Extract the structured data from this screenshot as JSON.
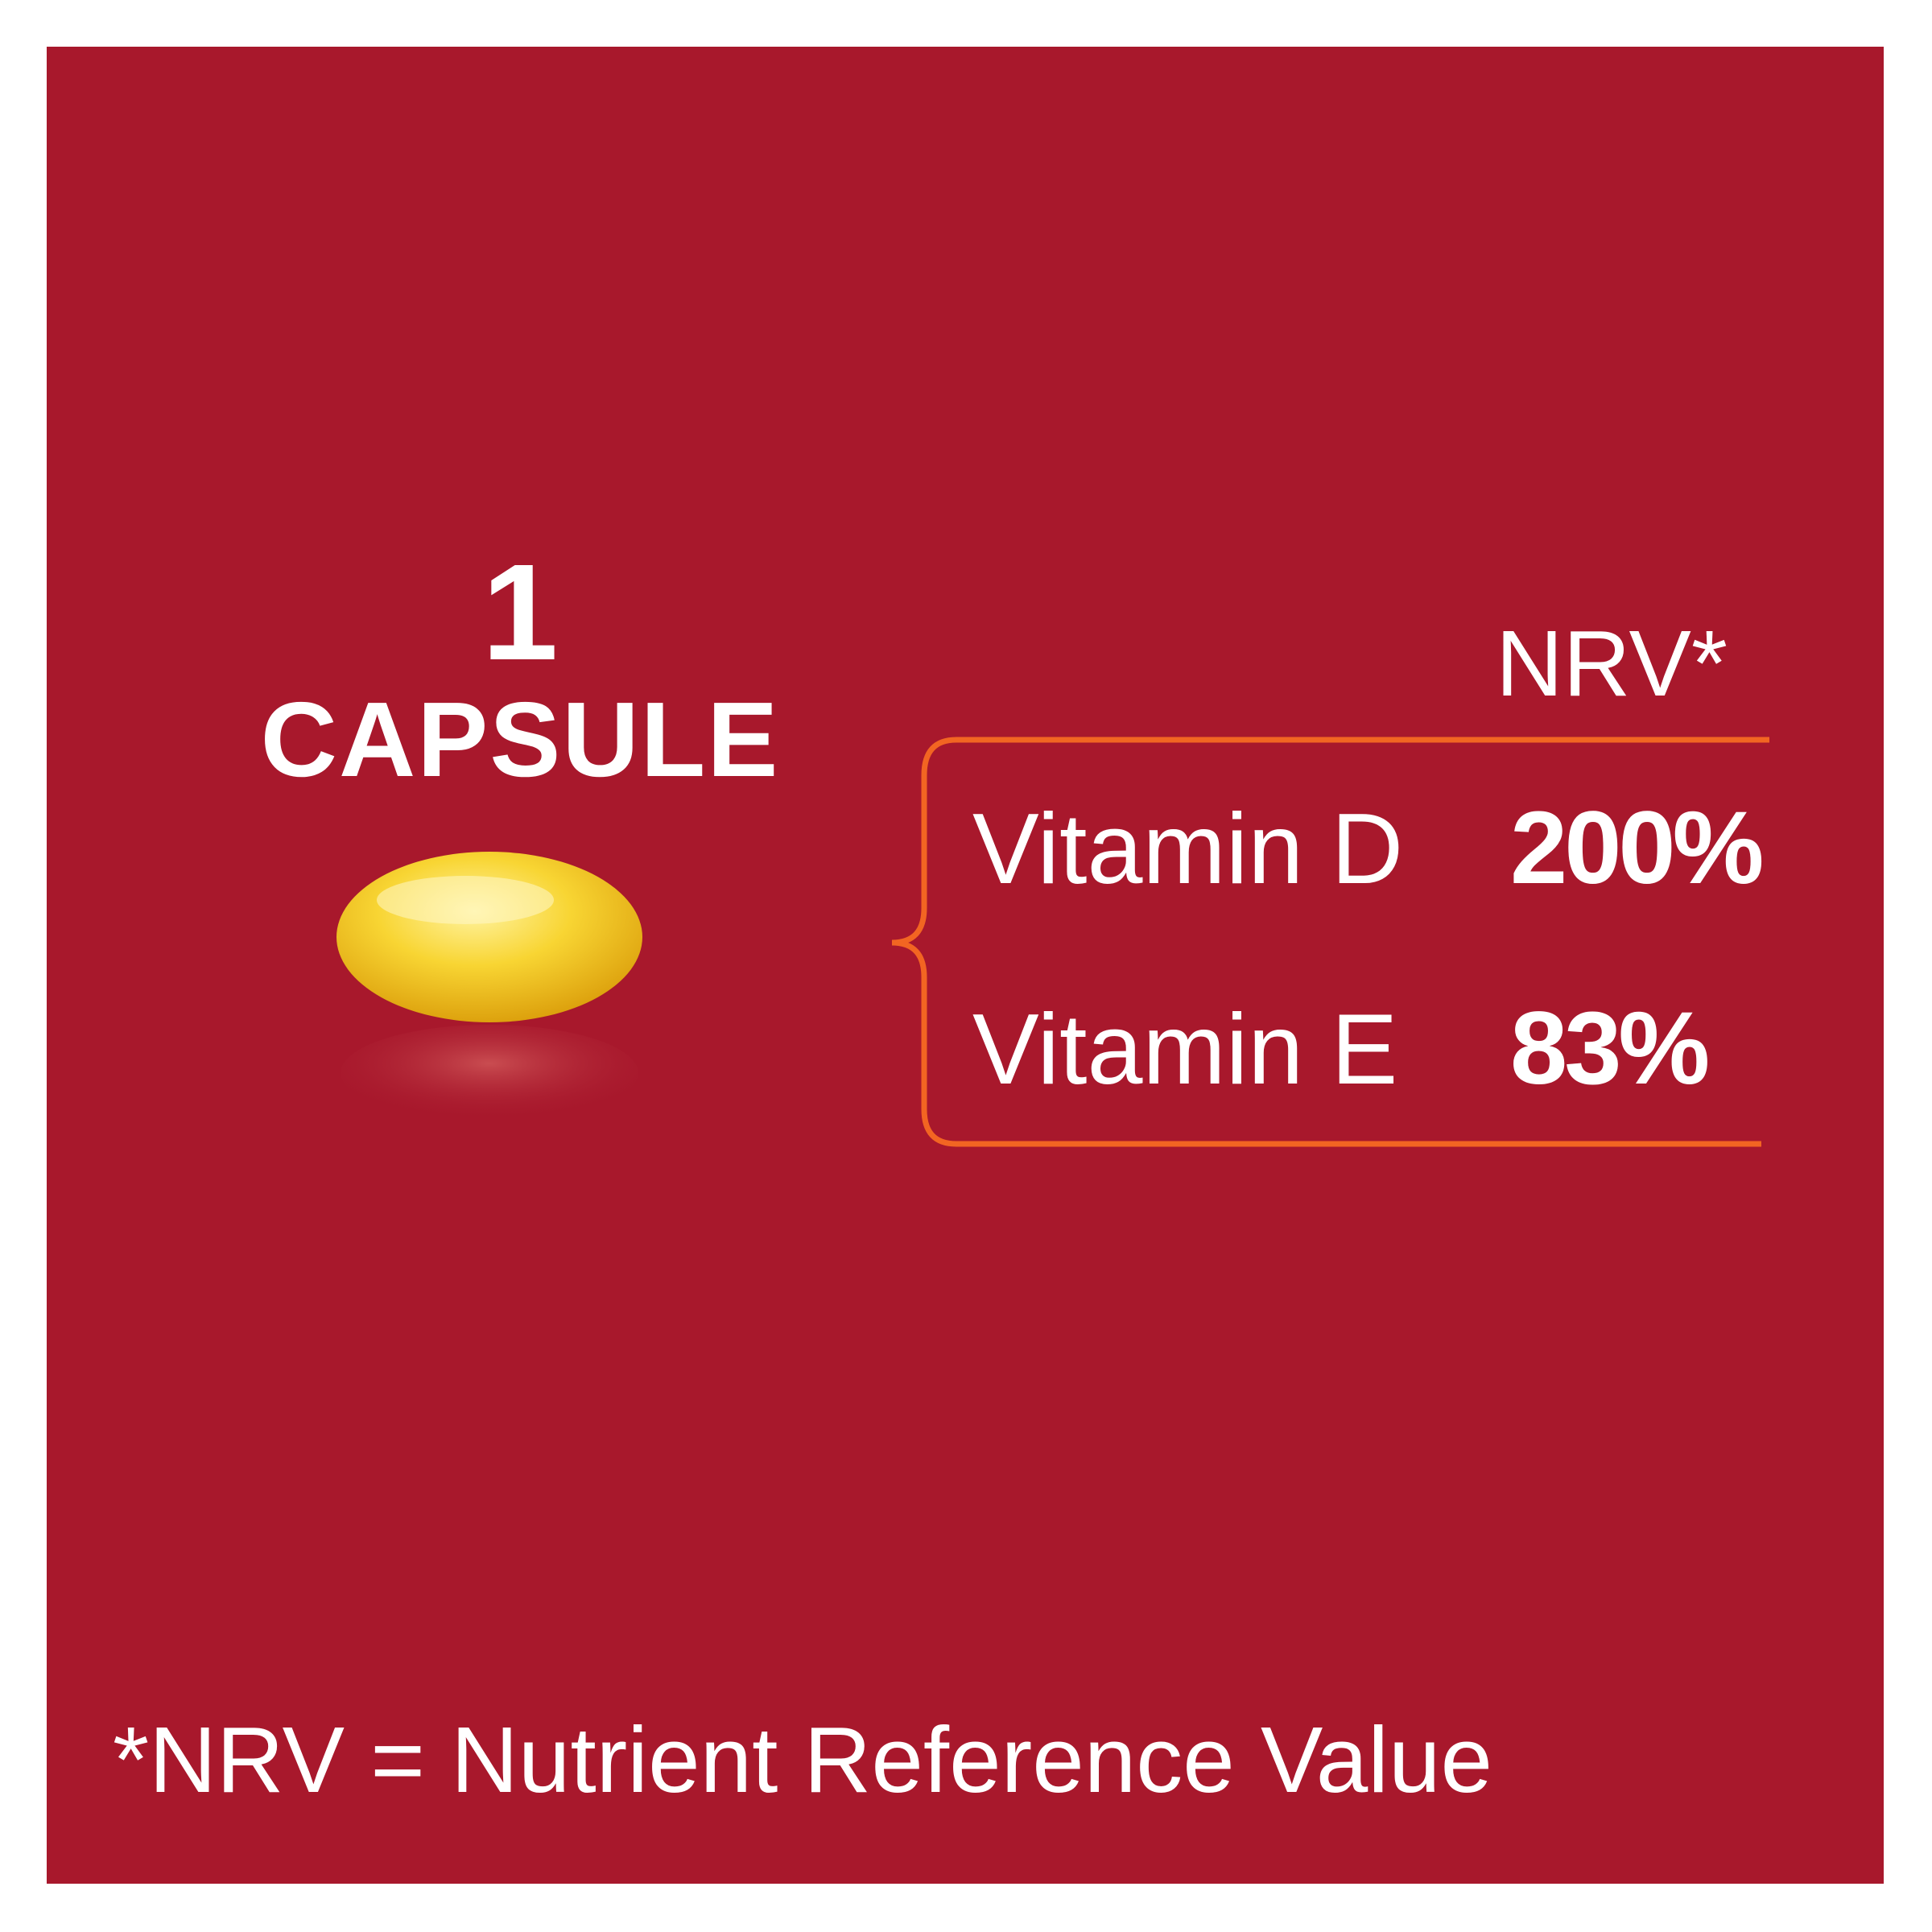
{
  "serving": {
    "quantity": "1",
    "unit": "CAPSULE"
  },
  "table": {
    "header": "NRV*",
    "rows": [
      {
        "nutrient": "Vitamin D",
        "nrv": "200%"
      },
      {
        "nutrient": "Vitamin E",
        "nrv": "83%"
      }
    ]
  },
  "footnote": "*NRV = Nutrient Reference Value",
  "colors": {
    "background": "#A8182C",
    "bracket": "#F26522",
    "capsule": "#F5C518",
    "text": "#FFFFFF"
  },
  "icons": {
    "capsule": "softgel-capsule-icon"
  }
}
